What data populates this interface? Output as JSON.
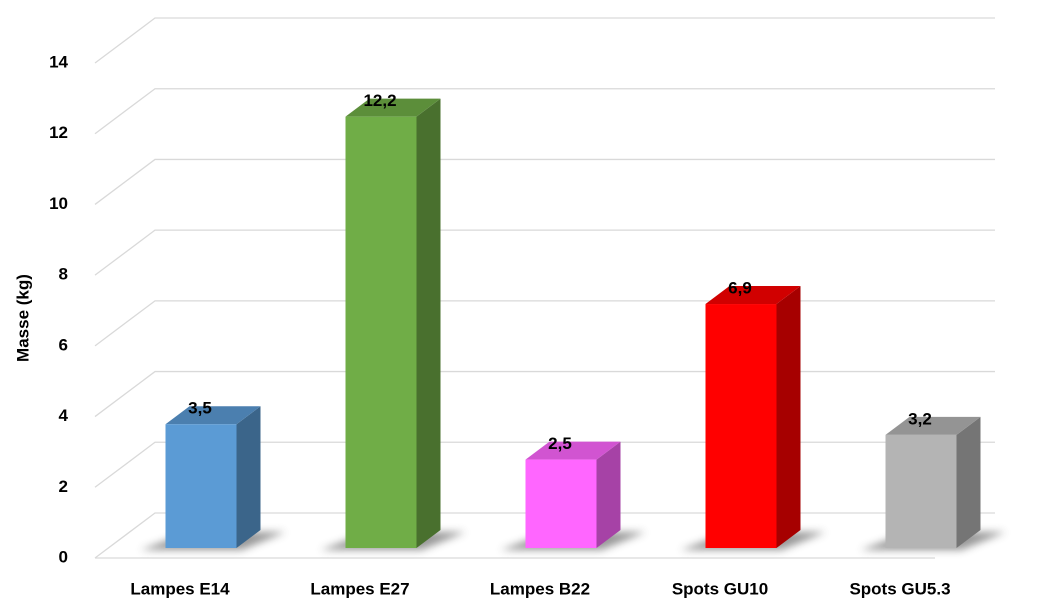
{
  "chart_data": {
    "type": "bar3d",
    "y_label": "Masse (kg)",
    "categories": [
      "Lampes E14",
      "Lampes E27",
      "Lampes B22",
      "Spots GU10",
      "Spots GU5.3"
    ],
    "values": [
      3.5,
      12.2,
      2.5,
      6.9,
      3.2
    ],
    "value_labels": [
      "3,5",
      "12,2",
      "2,5",
      "6,9",
      "3,2"
    ],
    "colors": [
      "#5b9bd5",
      "#70ad47",
      "#ff66ff",
      "#ff0000",
      "#b4b4b4"
    ],
    "ylim": [
      0,
      14
    ],
    "yticks": [
      0,
      2,
      4,
      6,
      8,
      10,
      12,
      14
    ],
    "grid": true
  }
}
